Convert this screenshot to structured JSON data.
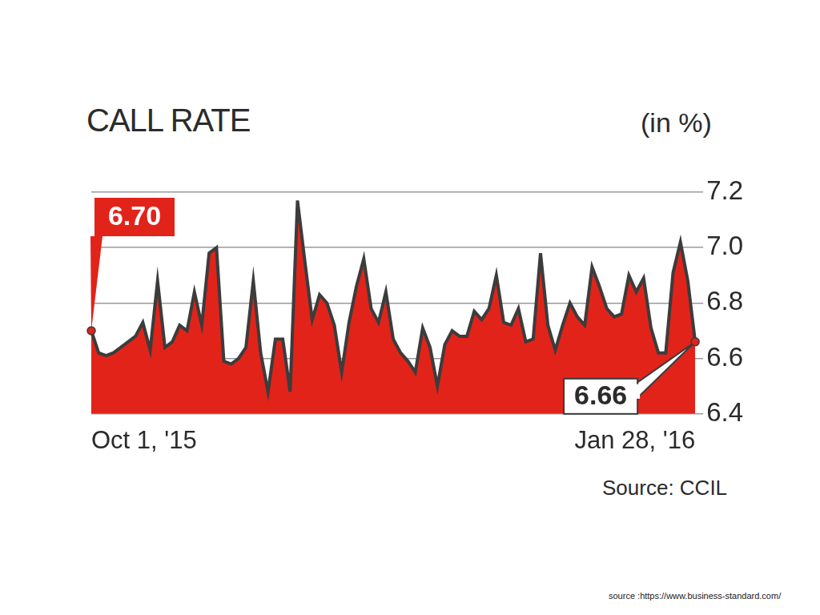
{
  "chart_data": {
    "type": "area",
    "title": "CALL RATE",
    "y_label": "(in %)",
    "source": "Source: CCIL",
    "credit": "source :https://www.business-standard.com/",
    "color": "#e2231a",
    "grid": true,
    "categories": [
      "Oct 1, '15",
      null,
      null,
      null,
      null,
      null,
      null,
      null,
      null,
      null,
      null,
      null,
      null,
      null,
      null,
      null,
      null,
      null,
      null,
      null,
      null,
      null,
      null,
      null,
      null,
      null,
      null,
      null,
      null,
      null,
      null,
      null,
      null,
      null,
      null,
      null,
      null,
      null,
      null,
      null,
      null,
      null,
      null,
      null,
      null,
      null,
      null,
      null,
      null,
      null,
      null,
      null,
      null,
      null,
      null,
      null,
      null,
      null,
      null,
      null,
      null,
      null,
      null,
      null,
      null,
      null,
      null,
      null,
      null,
      null,
      null,
      null,
      null,
      null,
      null,
      null,
      null,
      null,
      null,
      null,
      null,
      null,
      "Jan 28, '16"
    ],
    "values": [
      6.7,
      6.62,
      6.61,
      6.62,
      6.64,
      6.66,
      6.68,
      6.73,
      6.63,
      6.88,
      6.64,
      6.66,
      6.72,
      6.7,
      6.84,
      6.72,
      6.98,
      7.0,
      6.59,
      6.58,
      6.6,
      6.64,
      6.88,
      6.62,
      6.48,
      6.67,
      6.67,
      6.48,
      7.17,
      6.95,
      6.74,
      6.83,
      6.8,
      6.72,
      6.55,
      6.73,
      6.86,
      6.96,
      6.78,
      6.73,
      6.84,
      6.67,
      6.62,
      6.59,
      6.55,
      6.71,
      6.64,
      6.5,
      6.65,
      6.7,
      6.68,
      6.68,
      6.77,
      6.74,
      6.78,
      6.9,
      6.73,
      6.72,
      6.78,
      6.66,
      6.67,
      6.98,
      6.72,
      6.63,
      6.72,
      6.8,
      6.75,
      6.72,
      6.93,
      6.86,
      6.78,
      6.75,
      6.76,
      6.9,
      6.84,
      6.89,
      6.71,
      6.62,
      6.62,
      6.91,
      7.02,
      6.88,
      6.66
    ],
    "ylim": [
      6.4,
      7.2
    ],
    "yticks": [
      6.4,
      6.6,
      6.8,
      {
        "value": 7,
        "label": "7.0"
      },
      7.2
    ],
    "annotations": [
      {
        "text": "6.70",
        "value": 6.7,
        "category": "Oct 1, '15"
      },
      {
        "text": "6.66",
        "value": 6.66,
        "category": "Jan 28, '16"
      }
    ]
  }
}
